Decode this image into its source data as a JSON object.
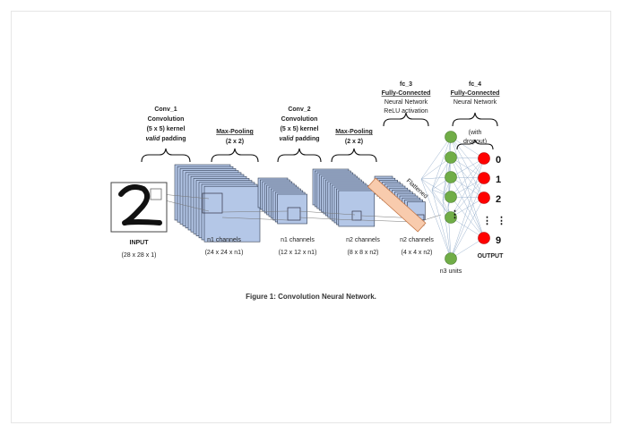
{
  "diagram": {
    "input": {
      "title": "INPUT",
      "dims": "(28 x 28 x 1)"
    },
    "conv1": {
      "name": "Conv_1",
      "type": "Convolution",
      "kernel": "(5 x 5) kernel",
      "padding_italic": "valid",
      "padding_rest": " padding",
      "channels": "n1 channels",
      "dims": "(24 x 24 x n1)"
    },
    "pool1": {
      "name": "Max-Pooling",
      "size": "(2 x 2)",
      "channels": "n1 channels",
      "dims": "(12 x 12 x n1)"
    },
    "conv2": {
      "name": "Conv_2",
      "type": "Convolution",
      "kernel": "(5 x 5) kernel",
      "padding_italic": "valid",
      "padding_rest": " padding",
      "channels": "n2 channels",
      "dims": "(8 x 8 x n2)"
    },
    "pool2": {
      "name": "Max-Pooling",
      "size": "(2 x 2)",
      "channels": "n2 channels",
      "dims": "(4 x 4 x n2)"
    },
    "flatten": {
      "label": "Flattened"
    },
    "fc3": {
      "name": "fc_3",
      "type": "Fully-Connected",
      "desc1": "Neural Network",
      "desc2": "ReLU activation",
      "units": "n3 units"
    },
    "fc4": {
      "name": "fc_4",
      "type": "Fully-Connected",
      "desc1": "Neural Network",
      "dropout1": "(with",
      "dropout2": "dropout)"
    },
    "output": {
      "title": "OUTPUT",
      "labels": [
        "0",
        "1",
        "2",
        "⋮",
        "9"
      ]
    },
    "caption": "Figure 1: Convolution Neural Network."
  },
  "colors": {
    "conv": "#b4c7e7",
    "outline": "#2f3b52",
    "fc_node": "#70ad47",
    "out_node": "#ff0000",
    "flatten": "#f8cbad",
    "flatten_border": "#c5794a",
    "line": "#9db4cf"
  }
}
